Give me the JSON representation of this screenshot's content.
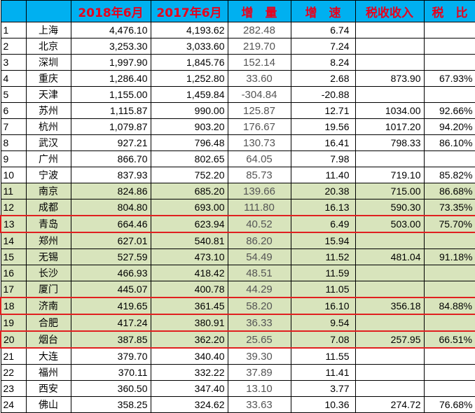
{
  "headers": {
    "y2018": "2018年6月",
    "y2017": "2017年6月",
    "increase": "增　量",
    "growth": "增　速",
    "tax": "税收收入",
    "ratio": "税　比"
  },
  "rows": [
    {
      "idx": "1",
      "city": "上海",
      "y2018": "4,476.10",
      "y2017": "4,193.62",
      "increase": "282.48",
      "growth": "6.74",
      "tax": "",
      "ratio": ""
    },
    {
      "idx": "2",
      "city": "北京",
      "y2018": "3,253.30",
      "y2017": "3,033.60",
      "increase": "219.70",
      "growth": "7.24",
      "tax": "",
      "ratio": ""
    },
    {
      "idx": "3",
      "city": "深圳",
      "y2018": "1,997.90",
      "y2017": "1,845.76",
      "increase": "152.14",
      "growth": "8.24",
      "tax": "",
      "ratio": ""
    },
    {
      "idx": "4",
      "city": "重庆",
      "y2018": "1,286.40",
      "y2017": "1,252.80",
      "increase": "33.60",
      "growth": "2.68",
      "tax": "873.90",
      "ratio": "67.93%"
    },
    {
      "idx": "5",
      "city": "天津",
      "y2018": "1,155.00",
      "y2017": "1,459.84",
      "increase": "-304.84",
      "growth": "-20.88",
      "tax": "",
      "ratio": ""
    },
    {
      "idx": "6",
      "city": "苏州",
      "y2018": "1,115.87",
      "y2017": "990.00",
      "increase": "125.87",
      "growth": "12.71",
      "tax": "1034.00",
      "ratio": "92.66%"
    },
    {
      "idx": "7",
      "city": "杭州",
      "y2018": "1,079.87",
      "y2017": "903.20",
      "increase": "176.67",
      "growth": "19.56",
      "tax": "1017.20",
      "ratio": "94.20%"
    },
    {
      "idx": "8",
      "city": "武汉",
      "y2018": "927.21",
      "y2017": "796.48",
      "increase": "130.73",
      "growth": "16.41",
      "tax": "798.33",
      "ratio": "86.10%"
    },
    {
      "idx": "9",
      "city": "广州",
      "y2018": "866.70",
      "y2017": "802.65",
      "increase": "64.05",
      "growth": "7.98",
      "tax": "",
      "ratio": ""
    },
    {
      "idx": "10",
      "city": "宁波",
      "y2018": "837.93",
      "y2017": "752.20",
      "increase": "85.73",
      "growth": "11.40",
      "tax": "719.10",
      "ratio": "85.82%"
    },
    {
      "idx": "11",
      "city": "南京",
      "y2018": "824.86",
      "y2017": "685.20",
      "increase": "139.66",
      "growth": "20.38",
      "tax": "715.00",
      "ratio": "86.68%"
    },
    {
      "idx": "12",
      "city": "成都",
      "y2018": "804.80",
      "y2017": "693.00",
      "increase": "111.80",
      "growth": "16.13",
      "tax": "590.30",
      "ratio": "73.35%"
    },
    {
      "idx": "13",
      "city": "青岛",
      "y2018": "664.46",
      "y2017": "623.94",
      "increase": "40.52",
      "growth": "6.49",
      "tax": "503.00",
      "ratio": "75.70%"
    },
    {
      "idx": "14",
      "city": "郑州",
      "y2018": "627.01",
      "y2017": "540.81",
      "increase": "86.20",
      "growth": "15.94",
      "tax": "",
      "ratio": ""
    },
    {
      "idx": "15",
      "city": "无锡",
      "y2018": "527.59",
      "y2017": "473.10",
      "increase": "54.49",
      "growth": "11.52",
      "tax": "481.04",
      "ratio": "91.18%"
    },
    {
      "idx": "16",
      "city": "长沙",
      "y2018": "466.93",
      "y2017": "418.42",
      "increase": "48.51",
      "growth": "11.59",
      "tax": "",
      "ratio": ""
    },
    {
      "idx": "17",
      "city": "厦门",
      "y2018": "445.07",
      "y2017": "400.78",
      "increase": "44.29",
      "growth": "11.05",
      "tax": "",
      "ratio": ""
    },
    {
      "idx": "18",
      "city": "济南",
      "y2018": "419.65",
      "y2017": "361.45",
      "increase": "58.20",
      "growth": "16.10",
      "tax": "356.18",
      "ratio": "84.88%"
    },
    {
      "idx": "19",
      "city": "合肥",
      "y2018": "417.24",
      "y2017": "380.91",
      "increase": "36.33",
      "growth": "9.54",
      "tax": "",
      "ratio": ""
    },
    {
      "idx": "20",
      "city": "烟台",
      "y2018": "387.85",
      "y2017": "362.20",
      "increase": "25.65",
      "growth": "7.08",
      "tax": "257.95",
      "ratio": "66.51%"
    },
    {
      "idx": "21",
      "city": "大连",
      "y2018": "379.70",
      "y2017": "340.40",
      "increase": "39.30",
      "growth": "11.55",
      "tax": "",
      "ratio": ""
    },
    {
      "idx": "22",
      "city": "福州",
      "y2018": "370.11",
      "y2017": "332.22",
      "increase": "37.89",
      "growth": "11.41",
      "tax": "",
      "ratio": ""
    },
    {
      "idx": "23",
      "city": "西安",
      "y2018": "360.50",
      "y2017": "347.40",
      "increase": "13.10",
      "growth": "3.77",
      "tax": "",
      "ratio": ""
    },
    {
      "idx": "24",
      "city": "佛山",
      "y2018": "358.25",
      "y2017": "324.62",
      "increase": "33.63",
      "growth": "10.36",
      "tax": "274.72",
      "ratio": "76.68%"
    }
  ],
  "styles": {
    "header_bg": "#00b0f0",
    "header_text": "#e8001c",
    "green_rows_bg": "#d8e4bc",
    "highlight_border": "#e02020"
  },
  "green_rows": [
    "11",
    "12",
    "13",
    "14",
    "15",
    "16",
    "17",
    "18",
    "19",
    "20"
  ],
  "highlighted_rows": [
    "13",
    "18",
    "20"
  ]
}
